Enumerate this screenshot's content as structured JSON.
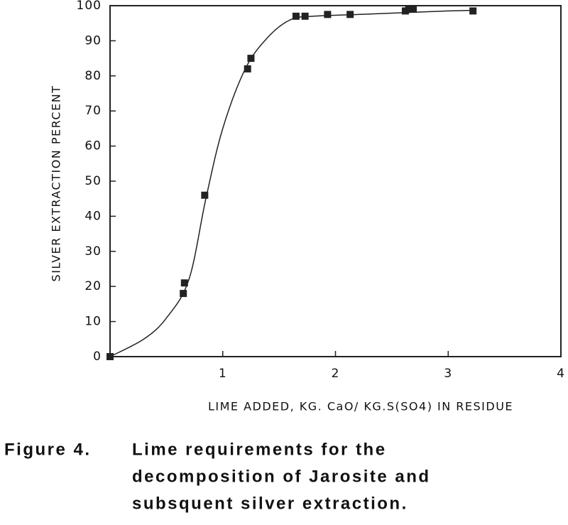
{
  "chart_data": {
    "type": "scatter",
    "y_label": "SILVER EXTRACTION PERCENT",
    "x_label": "LIME ADDED, KG. CaO/ KG.S(SO4) IN RESIDUE",
    "caption": [
      "Figure 4.",
      "Lime requirements for the",
      "decomposition of Jarosite and",
      "subsquent silver extraction."
    ],
    "xlim": [
      0,
      4
    ],
    "ylim": [
      0,
      100
    ],
    "xticks": [
      1,
      2,
      3,
      4
    ],
    "yticks": [
      0,
      10,
      20,
      30,
      40,
      50,
      60,
      70,
      80,
      90,
      100
    ],
    "color": "#222222",
    "x": [
      0,
      0.65,
      0.66,
      0.84,
      1.22,
      1.25,
      1.65,
      1.73,
      1.93,
      2.13,
      2.62,
      2.65,
      2.69,
      3.22
    ],
    "values": [
      0,
      18,
      21,
      46,
      82,
      85,
      97,
      97,
      97.5,
      97.5,
      98.5,
      99,
      99,
      98.5
    ],
    "fit": {
      "x": [
        0,
        0.3,
        0.5,
        0.7,
        0.85,
        1.0,
        1.2,
        1.4,
        1.6,
        1.8,
        2.2,
        2.6,
        3.0,
        3.25
      ],
      "y": [
        0,
        5,
        11,
        22,
        45,
        65,
        82,
        91,
        96,
        97,
        97.5,
        98,
        98.5,
        98.7
      ]
    }
  }
}
